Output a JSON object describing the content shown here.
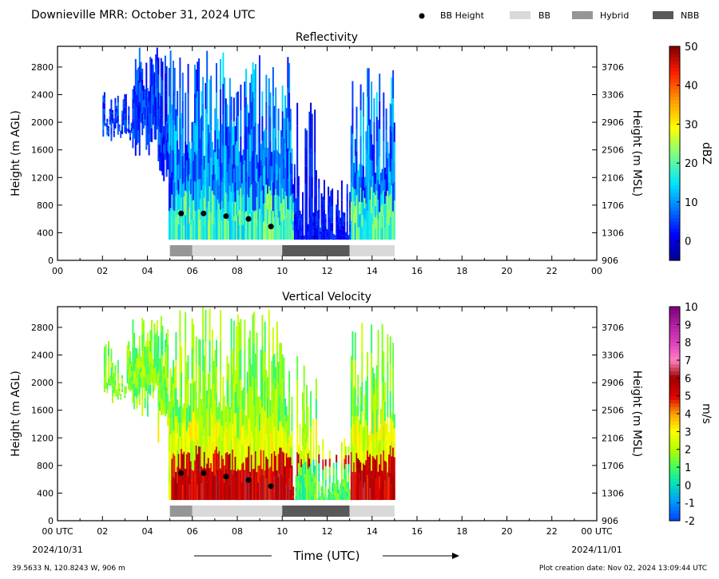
{
  "header": {
    "title": "Downieville MRR:  October 31, 2024 UTC",
    "legend": [
      {
        "label": "BB Height",
        "swatch": "dot",
        "color": "#000000"
      },
      {
        "label": "BB",
        "swatch": "box",
        "color": "#d9d9d9"
      },
      {
        "label": "Hybrid",
        "swatch": "box",
        "color": "#969696"
      },
      {
        "label": "NBB",
        "swatch": "box",
        "color": "#595959"
      }
    ]
  },
  "chart_data": [
    {
      "type": "heatmap",
      "title": "Reflectivity",
      "ylabel": "Height (m AGL)",
      "ylabel_right": "Height (m MSL)",
      "x_ticks": [
        "00",
        "02",
        "04",
        "06",
        "08",
        "10",
        "12",
        "14",
        "16",
        "18",
        "20",
        "22",
        "00"
      ],
      "xlim_hours": [
        0,
        24
      ],
      "ylim": [
        0,
        3100
      ],
      "y_ticks": [
        0,
        400,
        800,
        1200,
        1600,
        2000,
        2400,
        2800
      ],
      "y_ticks_right": [
        "906",
        "1306",
        "1706",
        "2106",
        "2506",
        "2906",
        "3306",
        "3706"
      ],
      "colorbar": {
        "label": "dBZ",
        "range": [
          -5,
          50
        ],
        "ticks": [
          "0",
          "10",
          "20",
          "30",
          "40",
          "50"
        ]
      },
      "bb_height_points": [
        {
          "hour": 5.5,
          "height": 680
        },
        {
          "hour": 6.5,
          "height": 680
        },
        {
          "hour": 7.5,
          "height": 640
        },
        {
          "hour": 8.5,
          "height": 600
        },
        {
          "hour": 9.5,
          "height": 490
        }
      ],
      "bb_type_segments": [
        {
          "start": 5.0,
          "end": 6.0,
          "type": "Hybrid"
        },
        {
          "start": 6.0,
          "end": 10.0,
          "type": "BB"
        },
        {
          "start": 10.0,
          "end": 13.0,
          "type": "NBB"
        },
        {
          "start": 13.0,
          "end": 15.0,
          "type": "BB"
        }
      ]
    },
    {
      "type": "heatmap",
      "title": "Vertical Velocity",
      "ylabel": "Height (m AGL)",
      "ylabel_right": "Height (m MSL)",
      "xlabel": "Time (UTC)",
      "x_ticks": [
        "00 UTC",
        "02",
        "04",
        "06",
        "08",
        "10",
        "12",
        "14",
        "16",
        "18",
        "20",
        "22",
        "00 UTC"
      ],
      "date_start": "2024/10/31",
      "date_end": "2024/11/01",
      "xlim_hours": [
        0,
        24
      ],
      "ylim": [
        0,
        3100
      ],
      "y_ticks": [
        0,
        400,
        800,
        1200,
        1600,
        2000,
        2400,
        2800
      ],
      "y_ticks_right": [
        "906",
        "1306",
        "1706",
        "2106",
        "2506",
        "2906",
        "3306",
        "3706"
      ],
      "colorbar": {
        "label": "m/s",
        "range": [
          -2,
          10
        ],
        "ticks": [
          "-2",
          "-1",
          "0",
          "1",
          "2",
          "3",
          "4",
          "5",
          "6",
          "7",
          "8",
          "9",
          "10"
        ]
      },
      "bb_height_points": [
        {
          "hour": 5.5,
          "height": 690
        },
        {
          "hour": 6.5,
          "height": 690
        },
        {
          "hour": 7.5,
          "height": 640
        },
        {
          "hour": 8.5,
          "height": 590
        },
        {
          "hour": 9.5,
          "height": 500
        }
      ],
      "bb_type_segments": [
        {
          "start": 5.0,
          "end": 6.0,
          "type": "Hybrid"
        },
        {
          "start": 6.0,
          "end": 10.0,
          "type": "BB"
        },
        {
          "start": 10.0,
          "end": 13.0,
          "type": "NBB"
        },
        {
          "start": 13.0,
          "end": 15.0,
          "type": "BB"
        }
      ]
    }
  ],
  "footer": {
    "location": "39.5633 N, 120.8243 W, 906 m",
    "created": "Plot creation date: Nov 02, 2024 13:09:44 UTC"
  }
}
